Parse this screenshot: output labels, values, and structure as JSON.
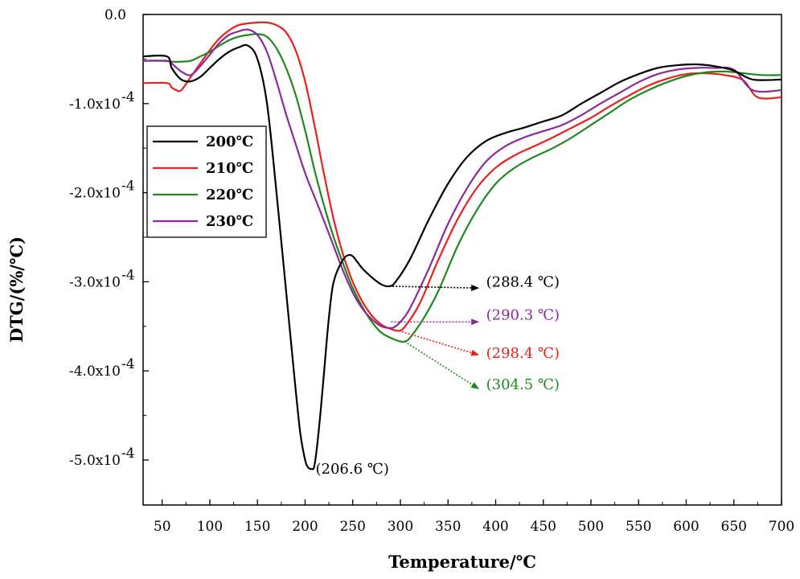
{
  "chart_data": {
    "type": "line",
    "title": "",
    "xlabel": "Temperature/℃",
    "ylabel": "DTG/(%/℃)",
    "xlim": [
      30,
      700
    ],
    "ylim": [
      -5.5,
      0
    ],
    "y_unit_note": "values in units of 1e-4",
    "x_ticks": [
      50,
      100,
      150,
      200,
      250,
      300,
      350,
      400,
      450,
      500,
      550,
      600,
      650,
      700
    ],
    "x_tick_labels": [
      "50",
      "100",
      "150",
      "200",
      "250",
      "300",
      "350",
      "400",
      "450",
      "500",
      "550",
      "600",
      "650",
      "700"
    ],
    "y_ticks": [
      0,
      -1,
      -2,
      -3,
      -4,
      -5
    ],
    "y_tick_labels": [
      "0.0",
      "-1.0x10",
      "-2.0x10",
      "-3.0x10",
      "-4.0x10",
      "-5.0x10"
    ],
    "y_tick_exponent": "-4",
    "legend": {
      "position": "left-upper",
      "entries": [
        "200℃",
        "210℃",
        "220℃",
        "230℃"
      ]
    },
    "series": [
      {
        "name": "200℃",
        "color": "#000000",
        "x": [
          30,
          55,
          60,
          70,
          80,
          90,
          100,
          110,
          120,
          130,
          140,
          150,
          160,
          170,
          180,
          190,
          195,
          200,
          203,
          206.6,
          210,
          215,
          220,
          225,
          230,
          240,
          248,
          255,
          260,
          270,
          280,
          288.4,
          295,
          310,
          330,
          350,
          370,
          390,
          410,
          430,
          450,
          470,
          490,
          510,
          530,
          550,
          570,
          590,
          610,
          630,
          650,
          670,
          700
        ],
        "y": [
          -0.47,
          -0.47,
          -0.6,
          -0.73,
          -0.75,
          -0.7,
          -0.6,
          -0.5,
          -0.42,
          -0.37,
          -0.35,
          -0.5,
          -1.0,
          -2.0,
          -3.1,
          -4.2,
          -4.7,
          -5.0,
          -5.08,
          -5.1,
          -5.05,
          -4.6,
          -4.0,
          -3.4,
          -3.0,
          -2.75,
          -2.7,
          -2.78,
          -2.85,
          -2.95,
          -3.03,
          -3.05,
          -3.0,
          -2.75,
          -2.3,
          -1.9,
          -1.6,
          -1.42,
          -1.33,
          -1.27,
          -1.2,
          -1.13,
          -1.0,
          -0.88,
          -0.76,
          -0.67,
          -0.6,
          -0.57,
          -0.56,
          -0.58,
          -0.63,
          -0.73,
          -0.73
        ]
      },
      {
        "name": "210℃",
        "color": "#e8211d",
        "x": [
          30,
          55,
          60,
          65,
          70,
          80,
          90,
          100,
          110,
          120,
          130,
          140,
          150,
          160,
          170,
          180,
          190,
          200,
          210,
          220,
          230,
          240,
          250,
          260,
          270,
          280,
          290,
          298.4,
          305,
          320,
          340,
          360,
          380,
          400,
          420,
          440,
          460,
          480,
          500,
          520,
          540,
          560,
          580,
          600,
          620,
          640,
          660,
          675,
          700
        ],
        "y": [
          -0.77,
          -0.77,
          -0.82,
          -0.85,
          -0.85,
          -0.7,
          -0.55,
          -0.4,
          -0.27,
          -0.18,
          -0.12,
          -0.1,
          -0.09,
          -0.09,
          -0.12,
          -0.2,
          -0.4,
          -0.75,
          -1.25,
          -1.8,
          -2.3,
          -2.7,
          -3.0,
          -3.22,
          -3.38,
          -3.48,
          -3.53,
          -3.55,
          -3.5,
          -3.25,
          -2.75,
          -2.3,
          -1.95,
          -1.72,
          -1.58,
          -1.48,
          -1.38,
          -1.27,
          -1.16,
          -1.03,
          -0.91,
          -0.8,
          -0.72,
          -0.67,
          -0.66,
          -0.68,
          -0.74,
          -0.93,
          -0.93
        ]
      },
      {
        "name": "220℃",
        "color": "#1e8a1e",
        "x": [
          30,
          50,
          60,
          70,
          80,
          90,
          100,
          110,
          120,
          130,
          140,
          150,
          160,
          170,
          180,
          190,
          200,
          210,
          220,
          230,
          240,
          250,
          260,
          270,
          280,
          290,
          300,
          304.5,
          310,
          325,
          340,
          360,
          380,
          400,
          420,
          440,
          460,
          480,
          500,
          520,
          540,
          560,
          580,
          600,
          620,
          640,
          660,
          680,
          700
        ],
        "y": [
          -0.52,
          -0.52,
          -0.53,
          -0.53,
          -0.52,
          -0.47,
          -0.42,
          -0.35,
          -0.29,
          -0.25,
          -0.23,
          -0.22,
          -0.25,
          -0.38,
          -0.6,
          -0.9,
          -1.3,
          -1.75,
          -2.15,
          -2.5,
          -2.8,
          -3.07,
          -3.28,
          -3.45,
          -3.57,
          -3.63,
          -3.67,
          -3.67,
          -3.63,
          -3.4,
          -3.1,
          -2.6,
          -2.2,
          -1.9,
          -1.72,
          -1.6,
          -1.5,
          -1.38,
          -1.24,
          -1.1,
          -0.96,
          -0.85,
          -0.76,
          -0.69,
          -0.65,
          -0.64,
          -0.66,
          -0.68,
          -0.68
        ]
      },
      {
        "name": "230℃",
        "color": "#8b2a9c",
        "x": [
          30,
          55,
          60,
          70,
          80,
          90,
          100,
          110,
          120,
          130,
          140,
          150,
          160,
          170,
          180,
          190,
          200,
          210,
          220,
          230,
          240,
          250,
          260,
          270,
          280,
          290.3,
          295,
          300,
          310,
          330,
          350,
          370,
          390,
          410,
          430,
          450,
          470,
          490,
          510,
          530,
          550,
          570,
          590,
          610,
          630,
          650,
          670,
          700
        ],
        "y": [
          -0.52,
          -0.52,
          -0.55,
          -0.64,
          -0.68,
          -0.58,
          -0.45,
          -0.32,
          -0.23,
          -0.19,
          -0.17,
          -0.23,
          -0.42,
          -0.75,
          -1.12,
          -1.45,
          -1.78,
          -2.05,
          -2.32,
          -2.6,
          -2.88,
          -3.12,
          -3.3,
          -3.42,
          -3.5,
          -3.52,
          -3.5,
          -3.45,
          -3.3,
          -2.85,
          -2.35,
          -1.95,
          -1.65,
          -1.48,
          -1.38,
          -1.31,
          -1.24,
          -1.13,
          -1.0,
          -0.88,
          -0.76,
          -0.67,
          -0.62,
          -0.6,
          -0.6,
          -0.62,
          -0.85,
          -0.85
        ]
      }
    ],
    "annotations": [
      {
        "text": "(206.6 ℃)",
        "color": "#000000",
        "from": [
          206.6,
          -5.1
        ],
        "arrow": false,
        "label_at": [
          211,
          -5.1
        ]
      },
      {
        "text": "(288.4 ℃)",
        "color": "#000000",
        "from": [
          288.4,
          -3.05
        ],
        "arrow_to": [
          382,
          -3.07
        ],
        "label_at": [
          390,
          -3.0
        ]
      },
      {
        "text": "(290.3 ℃)",
        "color": "#8b2a9c",
        "from": [
          290.3,
          -3.45
        ],
        "arrow_to": [
          382,
          -3.45
        ],
        "label_at": [
          390,
          -3.37
        ]
      },
      {
        "text": "(298.4 ℃)",
        "color": "#e8211d",
        "from": [
          298.4,
          -3.55
        ],
        "arrow_to": [
          382,
          -3.82
        ],
        "label_at": [
          390,
          -3.8
        ]
      },
      {
        "text": "(304.5 ℃)",
        "color": "#1e8a1e",
        "from": [
          304.5,
          -3.67
        ],
        "arrow_to": [
          382,
          -4.2
        ],
        "label_at": [
          390,
          -4.15
        ]
      }
    ]
  }
}
